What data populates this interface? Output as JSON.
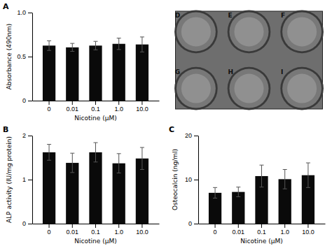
{
  "chart_data": [
    {
      "type": "bar",
      "title": "A",
      "categories": [
        "0",
        "0.01",
        "0.1",
        "1.0",
        "10.0"
      ],
      "values": [
        0.625,
        0.605,
        0.625,
        0.645,
        0.638
      ],
      "errors": [
        0.055,
        0.045,
        0.048,
        0.065,
        0.085
      ],
      "x_label": "Nicotine (μM)",
      "y_label": "Absorbance (490nm)",
      "ylim": [
        0,
        1.0
      ],
      "yticks": [
        0,
        0.5,
        {
          "value": 1.0,
          "label": "1.0"
        }
      ],
      "color": "#0a0a0a",
      "grid": false
    },
    {
      "type": "bar",
      "title": "B",
      "categories": [
        "0",
        "0.01",
        "0.1",
        "1.0",
        "10.0"
      ],
      "values": [
        1.62,
        1.38,
        1.62,
        1.37,
        1.48
      ],
      "errors": [
        0.18,
        0.22,
        0.22,
        0.22,
        0.25
      ],
      "x_label": "Nicotine (μM)",
      "y_label": "ALP activity (IU/mg protein)",
      "ylim": [
        0,
        2.0
      ],
      "yticks": [
        0,
        1,
        2
      ],
      "color": "#0a0a0a",
      "grid": false
    },
    {
      "type": "bar",
      "title": "C",
      "categories": [
        "0",
        "0.01",
        "0.1",
        "1.0",
        "10.0"
      ],
      "values": [
        7.0,
        7.2,
        10.8,
        10.1,
        11.0
      ],
      "errors": [
        1.2,
        1.1,
        2.5,
        2.2,
        2.8
      ],
      "x_label": "Nicotine (μM)",
      "y_label": "Osteocalcin (ng/ml)",
      "ylim": [
        0,
        20
      ],
      "yticks": [
        0,
        10,
        20
      ],
      "color": "#0a0a0a",
      "grid": false
    },
    {
      "type": "image",
      "annotations": [
        "D",
        "E",
        "F",
        "G",
        "H",
        "I"
      ]
    }
  ]
}
